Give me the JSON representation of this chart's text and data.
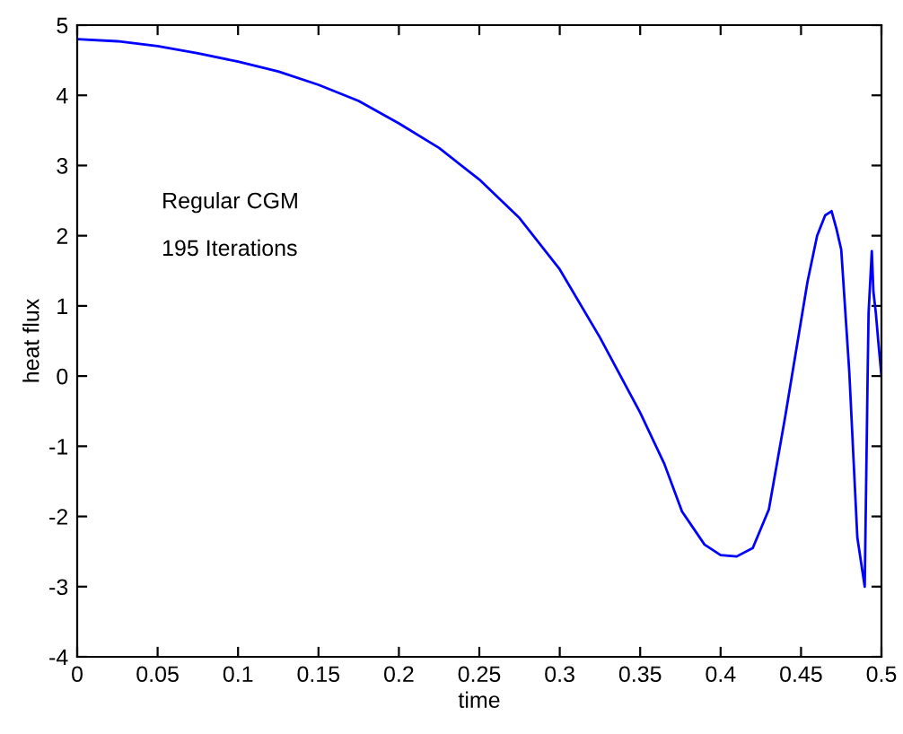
{
  "chart_data": {
    "type": "line",
    "xlabel": "time",
    "ylabel": "heat flux",
    "annotations": [
      "Regular CGM",
      "195 Iterations"
    ],
    "series": [
      {
        "color": "#0000ff",
        "x": [
          0,
          0.025,
          0.05,
          0.075,
          0.1,
          0.125,
          0.15,
          0.175,
          0.2,
          0.225,
          0.25,
          0.275,
          0.3,
          0.325,
          0.35,
          0.365,
          0.376,
          0.39,
          0.4,
          0.41,
          0.42,
          0.43,
          0.44,
          0.454,
          0.46,
          0.465,
          0.469,
          0.472,
          0.475,
          0.48,
          0.485,
          0.4896,
          0.4914,
          0.492,
          0.494,
          0.495,
          0.4965,
          0.498,
          0.5
        ],
        "values": [
          4.8,
          4.77,
          4.7,
          4.6,
          4.48,
          4.34,
          4.15,
          3.92,
          3.6,
          3.25,
          2.8,
          2.25,
          1.52,
          0.55,
          -0.52,
          -1.25,
          -1.93,
          -2.4,
          -2.55,
          -2.57,
          -2.45,
          -1.9,
          -0.6,
          1.34,
          2.0,
          2.29,
          2.35,
          2.1,
          1.8,
          0.06,
          -2.3,
          -3.0,
          0.0,
          0.9,
          1.78,
          1.2,
          0.9,
          0.5,
          0.0
        ]
      }
    ],
    "xlim": [
      0,
      0.5
    ],
    "ylim": [
      -4,
      5
    ],
    "xticks": [
      0,
      0.05,
      0.1,
      0.15,
      0.2,
      0.25,
      0.3,
      0.35,
      0.4,
      0.45,
      0.5
    ],
    "yticks": [
      -4,
      -3,
      -2,
      -1,
      0,
      1,
      2,
      3,
      4,
      5
    ],
    "grid": false,
    "legend": false,
    "line_style": "solid",
    "marker": "none"
  }
}
